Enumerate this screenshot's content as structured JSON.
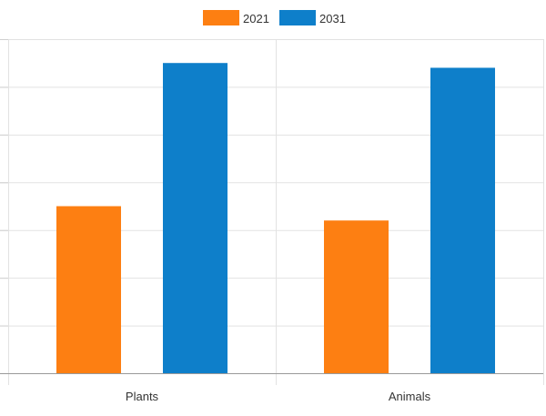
{
  "chart_data": {
    "type": "bar",
    "title": "",
    "xlabel": "",
    "ylabel": "",
    "categories": [
      "Plants",
      "Animals"
    ],
    "series": [
      {
        "name": "2021",
        "color": "#fd7f12",
        "values": [
          3.5,
          3.2
        ]
      },
      {
        "name": "2031",
        "color": "#0e7fca",
        "values": [
          6.5,
          6.4
        ]
      }
    ],
    "ylim": [
      0,
      7
    ],
    "grid": true,
    "legend": "top-center"
  }
}
